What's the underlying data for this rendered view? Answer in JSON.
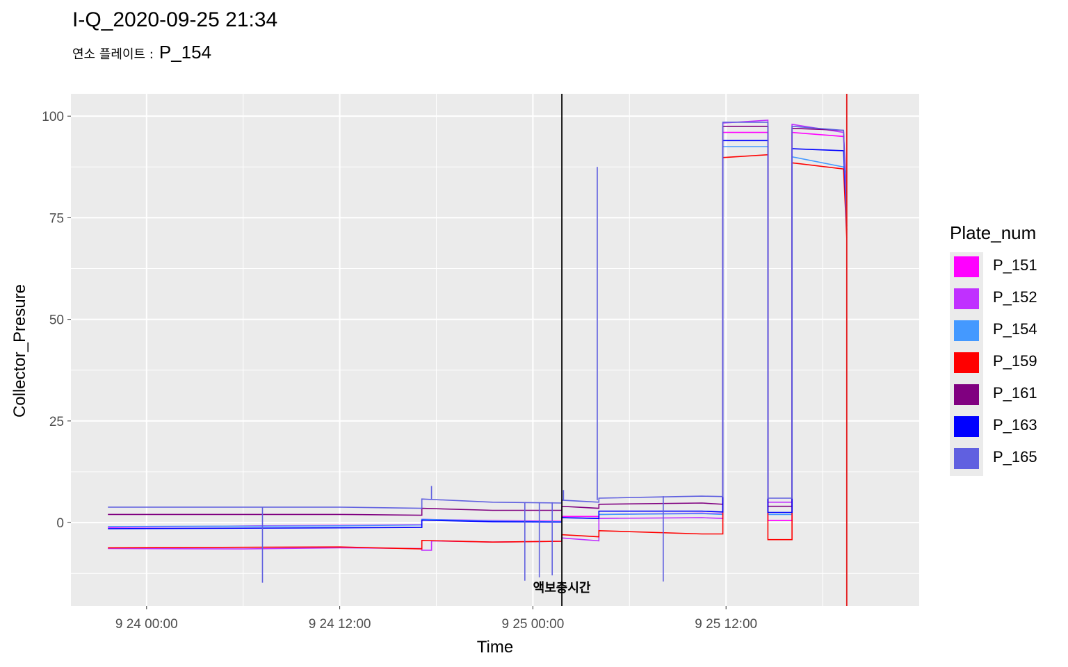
{
  "title": "I-Q_2020-09-25 21:34",
  "subtitle": {
    "label": "연소 플레이트 :",
    "value": "P_154"
  },
  "colors": {
    "panel_bg": "#ebebeb",
    "grid": "#ffffff",
    "vline_event": "#000000",
    "vline_now": "#e41a1c"
  },
  "chart_data": {
    "type": "line",
    "title": "I-Q_2020-09-25 21:34",
    "xlabel": "Time",
    "ylabel": "Collector_Presure",
    "x_unit": "hours since 9 24 00:00",
    "x_ticks": [
      {
        "x": 0,
        "label": "9 24 00:00"
      },
      {
        "x": 12,
        "label": "9 24 12:00"
      },
      {
        "x": 24,
        "label": "9 25 00:00"
      },
      {
        "x": 36,
        "label": "9 25 12:00"
      }
    ],
    "xlim": [
      -4.7,
      48
    ],
    "ylim": [
      -20.5,
      105.5
    ],
    "y_ticks": [
      0,
      25,
      50,
      75,
      100
    ],
    "grid": true,
    "legend_title": "Plate_num",
    "legend_position": "right",
    "event_line": {
      "x": 25.8,
      "label": "액보충시간"
    },
    "now_line": {
      "x": 43.5
    },
    "series": [
      {
        "name": "P_151",
        "color": "#ff00ff",
        "points": [
          [
            -2.4,
            -1.2
          ],
          [
            7,
            -0.8
          ],
          [
            12,
            -0.7
          ],
          [
            17.1,
            -0.5
          ],
          [
            17.1,
            0.8
          ],
          [
            21.5,
            0.5
          ],
          [
            25.8,
            0.3
          ],
          [
            25.8,
            1.5
          ],
          [
            28.1,
            1.5
          ],
          [
            28.1,
            2.0
          ],
          [
            34.5,
            2.3
          ],
          [
            35.8,
            2.1
          ],
          [
            35.8,
            96
          ],
          [
            38.6,
            96
          ],
          [
            38.6,
            0.5
          ],
          [
            40.1,
            0.5
          ],
          [
            40.1,
            96
          ],
          [
            43.3,
            95
          ],
          [
            43.5,
            78
          ]
        ]
      },
      {
        "name": "P_152",
        "color": "#c030ff",
        "points": [
          [
            -2.4,
            -6.4
          ],
          [
            6,
            -6.5
          ],
          [
            12,
            -6.2
          ],
          [
            17.1,
            -6.4
          ],
          [
            17.1,
            -6.8
          ],
          [
            17.7,
            -6.8
          ],
          [
            17.7,
            -4.5
          ],
          [
            21.5,
            -4.8
          ],
          [
            25.8,
            -4.6
          ],
          [
            25.8,
            -3.8
          ],
          [
            28.1,
            -4.5
          ],
          [
            28.1,
            1.0
          ],
          [
            34.5,
            1.2
          ],
          [
            35.8,
            1.0
          ],
          [
            35.8,
            98.3
          ],
          [
            38.6,
            99.0
          ],
          [
            38.6,
            5.0
          ],
          [
            40.1,
            5.0
          ],
          [
            40.1,
            98.0
          ],
          [
            43.3,
            96
          ],
          [
            43.5,
            80
          ]
        ]
      },
      {
        "name": "P_154",
        "color": "#4499ff",
        "points": [
          [
            -2.4,
            -1.0
          ],
          [
            12,
            -0.8
          ],
          [
            17.1,
            -0.6
          ],
          [
            17.1,
            0.8
          ],
          [
            21.5,
            0.4
          ],
          [
            25.8,
            0.2
          ],
          [
            25.8,
            1.2
          ],
          [
            28.1,
            1.0
          ],
          [
            28.1,
            2.0
          ],
          [
            34.5,
            2.2
          ],
          [
            35.8,
            2.0
          ],
          [
            35.8,
            92.5
          ],
          [
            38.6,
            92.5
          ],
          [
            38.6,
            2.0
          ],
          [
            40.1,
            2.0
          ],
          [
            40.1,
            90
          ],
          [
            43.3,
            87.5
          ],
          [
            43.5,
            86
          ]
        ]
      },
      {
        "name": "P_159",
        "color": "#ff0000",
        "points": [
          [
            -2.4,
            -6.2
          ],
          [
            12,
            -6.0
          ],
          [
            17.1,
            -6.5
          ],
          [
            17.1,
            -4.4
          ],
          [
            21.5,
            -4.8
          ],
          [
            25.8,
            -4.6
          ],
          [
            25.8,
            -3.0
          ],
          [
            28.1,
            -3.5
          ],
          [
            28.1,
            -2.0
          ],
          [
            34.5,
            -2.8
          ],
          [
            35.8,
            -2.8
          ],
          [
            35.8,
            89.8
          ],
          [
            38.6,
            90.5
          ],
          [
            38.6,
            -4.2
          ],
          [
            40.1,
            -4.2
          ],
          [
            40.1,
            88.5
          ],
          [
            43.3,
            87.0
          ],
          [
            43.5,
            70
          ]
        ]
      },
      {
        "name": "P_161",
        "color": "#800080",
        "points": [
          [
            -2.4,
            2.0
          ],
          [
            12,
            2.0
          ],
          [
            17.1,
            1.8
          ],
          [
            17.1,
            3.5
          ],
          [
            21.5,
            3.0
          ],
          [
            25.8,
            3.0
          ],
          [
            25.8,
            4.0
          ],
          [
            28.1,
            3.5
          ],
          [
            28.1,
            4.5
          ],
          [
            34.5,
            4.8
          ],
          [
            35.8,
            4.5
          ],
          [
            35.8,
            97.5
          ],
          [
            38.6,
            97.5
          ],
          [
            38.6,
            4.0
          ],
          [
            40.1,
            4.0
          ],
          [
            40.1,
            97.0
          ],
          [
            43.3,
            96.5
          ],
          [
            43.5,
            72
          ]
        ]
      },
      {
        "name": "P_163",
        "color": "#0000ff",
        "points": [
          [
            -2.4,
            -1.5
          ],
          [
            12,
            -1.3
          ],
          [
            17.1,
            -1.2
          ],
          [
            17.1,
            0.6
          ],
          [
            21.5,
            0.2
          ],
          [
            25.8,
            0.1
          ],
          [
            25.8,
            1.2
          ],
          [
            28.1,
            1.0
          ],
          [
            28.1,
            2.8
          ],
          [
            34.5,
            2.8
          ],
          [
            35.8,
            2.6
          ],
          [
            35.8,
            94
          ],
          [
            38.6,
            94
          ],
          [
            38.6,
            2.5
          ],
          [
            40.1,
            2.5
          ],
          [
            40.1,
            92
          ],
          [
            43.3,
            91.5
          ],
          [
            43.5,
            73
          ]
        ]
      },
      {
        "name": "P_165",
        "color": "#6060e0",
        "points": [
          [
            -2.4,
            3.8
          ],
          [
            12,
            3.8
          ],
          [
            17.1,
            3.5
          ],
          [
            17.1,
            5.8
          ],
          [
            21.5,
            5.0
          ],
          [
            25.8,
            4.8
          ],
          [
            25.8,
            5.5
          ],
          [
            28.1,
            5.0
          ],
          [
            28.1,
            6.0
          ],
          [
            34.5,
            6.5
          ],
          [
            35.8,
            6.4
          ],
          [
            35.8,
            98.5
          ],
          [
            38.6,
            98.5
          ],
          [
            38.6,
            6.0
          ],
          [
            40.1,
            6.0
          ],
          [
            40.1,
            97.5
          ],
          [
            43.3,
            96.5
          ],
          [
            43.5,
            72
          ]
        ]
      }
    ],
    "spikes": [
      {
        "series": "P_165",
        "x": 7.2,
        "y": -14.8
      },
      {
        "series": "P_165",
        "x": 17.7,
        "y": 9.0
      },
      {
        "series": "P_165",
        "x": 23.5,
        "y": -14.3
      },
      {
        "series": "P_165",
        "x": 24.4,
        "y": -13.5
      },
      {
        "series": "P_165",
        "x": 25.2,
        "y": -13.0
      },
      {
        "series": "P_165",
        "x": 25.9,
        "y": 8.0
      },
      {
        "series": "P_165",
        "x": 28.0,
        "y": 87.5
      },
      {
        "series": "P_165",
        "x": 32.1,
        "y": 6.5
      },
      {
        "series": "P_165",
        "x": 32.1,
        "y": -14.5
      }
    ]
  }
}
